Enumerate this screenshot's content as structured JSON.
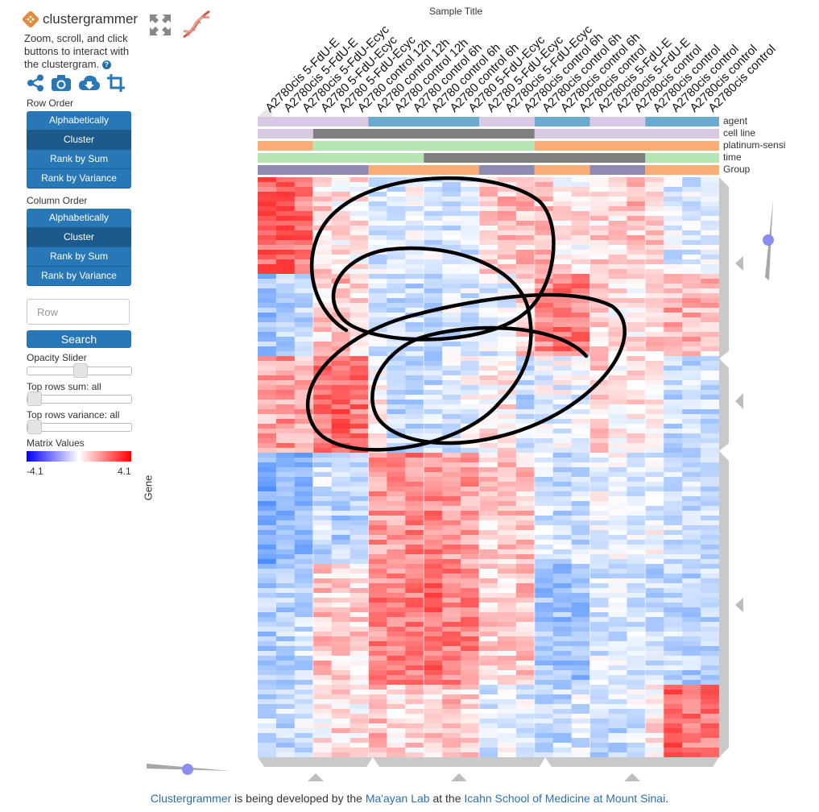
{
  "app": {
    "title": "clustergrammer",
    "intro": "Zoom, scroll, and click buttons to interact with the clustergram.",
    "help_icon": "?"
  },
  "toolbar": {
    "icons": [
      "share-icon",
      "camera-icon",
      "download-cloud-icon",
      "crop-icon"
    ]
  },
  "row_order": {
    "label": "Row Order",
    "options": [
      "Alphabetically",
      "Cluster",
      "Rank by Sum",
      "Rank by Variance"
    ],
    "selected": "Cluster"
  },
  "column_order": {
    "label": "Column Order",
    "options": [
      "Alphabetically",
      "Cluster",
      "Rank by Sum",
      "Rank by Variance"
    ],
    "selected": "Cluster"
  },
  "search": {
    "placeholder": "Row",
    "button": "Search"
  },
  "sliders": {
    "opacity": {
      "label": "Opacity Slider",
      "value": 0.5
    },
    "top_sum": {
      "label": "Top rows sum: all",
      "value": 0
    },
    "top_variance": {
      "label": "Top rows variance: all",
      "value": 0
    }
  },
  "legend": {
    "label": "Matrix Values",
    "min": "-4.1",
    "max": "4.1"
  },
  "heatmap": {
    "column_axis_title": "Sample Title",
    "row_axis_title": "Gene",
    "column_labels": [
      "A2780cis 5-FdU-E",
      "A2780cis 5-FdU-E",
      "A2780cis 5-FdU-Ecyc",
      "A2780 5-FdU-Ecyc",
      "A2780 5-FdU-Ecyc",
      "A2780 control 12h",
      "A2780 control 12h",
      "A2780 control 12h",
      "A2780 control 6h",
      "A2780 control 6h",
      "A2780 control 6h",
      "A2780 5-FdU-Ecyc",
      "A2780 5-FdU-Ecyc",
      "A2780cis 5-FdU-Ecyc",
      "A2780cis control 6h",
      "A2780cis control 6h",
      "A2780cis control 6h",
      "A2780cis control",
      "A2780cis 5-FdU-E",
      "A2780cis 5-FdU-E",
      "A2780cis control",
      "A2780cis control",
      "A2780cis control",
      "A2780cis control",
      "A2780cis control"
    ],
    "category_labels": [
      "agent",
      "cell line",
      "platinum-sensi",
      "time",
      "Group"
    ],
    "category_colors": {
      "lavender": "#d9c9e3",
      "blue": "#6aaad1",
      "gray": "#7f7f7f",
      "green": "#b6e4b3",
      "orange": "#f9ad74",
      "purple": "#8e8ab1"
    },
    "value_range": [
      -4.1,
      4.1
    ]
  },
  "footer": {
    "p1": "Clustergrammer",
    "p2": " is being developed by the ",
    "p3": "Ma'ayan Lab",
    "p4": " at the ",
    "p5": "Icahn School of Medicine at Mount Sinai",
    "p6": "."
  }
}
